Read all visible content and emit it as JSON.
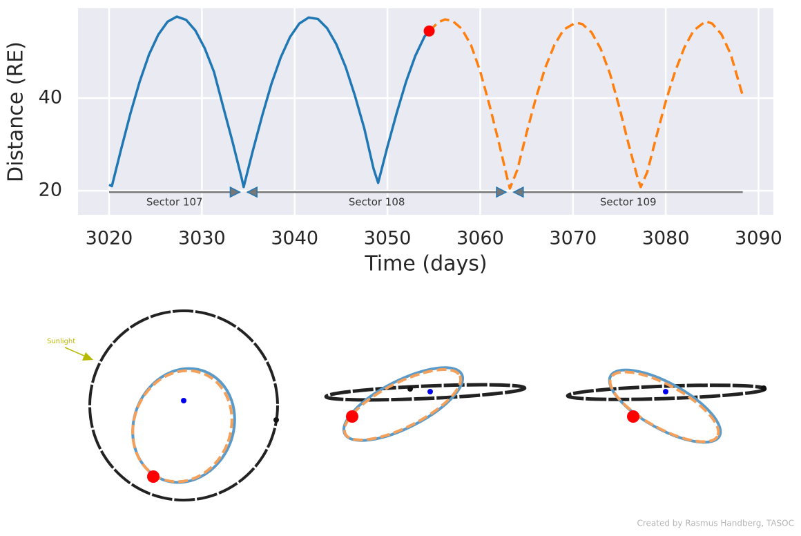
{
  "chart_data": {
    "type": "line",
    "ylabel": "Distance (RE)",
    "xlabel": "Time (days)",
    "xlim": [
      3016.65,
      3091.6
    ],
    "ylim": [
      14.8,
      59.4
    ],
    "xticks": [
      3020,
      3030,
      3040,
      3050,
      3060,
      3070,
      3080,
      3090
    ],
    "yticks": [
      20,
      40
    ],
    "grid": true,
    "series": [
      {
        "color": "#1f77b4",
        "dash": false,
        "x": [
          3020,
          3020.3,
          3021.3,
          3022.3,
          3023.3,
          3024.3,
          3025.3,
          3026.3,
          3027.3,
          3028.3,
          3029.3,
          3030.3,
          3031.3,
          3032.3,
          3033.3,
          3034.3,
          3034.5,
          3035.5,
          3036.5,
          3037.5,
          3038.5,
          3039.5,
          3040.5,
          3041.5,
          3042.5,
          3043.5,
          3044.5,
          3045.5,
          3046.5,
          3047.5,
          3048.5,
          3049,
          3050,
          3051,
          3052,
          3053,
          3054,
          3054.5
        ],
        "values": [
          21.3,
          21,
          29,
          36.7,
          43.6,
          49.4,
          53.7,
          56.5,
          57.6,
          56.9,
          54.6,
          50.8,
          45.7,
          38.1,
          30.6,
          22.6,
          20.8,
          28.7,
          36.2,
          43.1,
          48.8,
          53.2,
          56.1,
          57.4,
          57.1,
          55.1,
          51.6,
          46.7,
          40.5,
          33.5,
          24.8,
          21.7,
          29.5,
          36.8,
          43.5,
          49.1,
          53.3,
          54.5
        ]
      },
      {
        "color": "#ff7f0e",
        "dash": true,
        "x": [
          3054.5,
          3055.5,
          3056.2,
          3057,
          3058,
          3059,
          3060,
          3061,
          3062,
          3063,
          3063.2,
          3064,
          3065,
          3066,
          3067,
          3068,
          3069,
          3070.3,
          3071,
          3072,
          3073,
          3074,
          3075,
          3076,
          3077,
          3077.3,
          3078,
          3079,
          3080,
          3081,
          3082,
          3083,
          3084.3,
          3085,
          3086,
          3087,
          3088.3
        ],
        "values": [
          54.5,
          56.4,
          57,
          56.7,
          55,
          51.5,
          45.8,
          38.5,
          30.5,
          22,
          20.5,
          24.5,
          32.5,
          40,
          46.5,
          51.5,
          54.8,
          56.3,
          56,
          54.2,
          50.6,
          45.2,
          38,
          30,
          22.5,
          20.8,
          24,
          31.8,
          39.3,
          45.7,
          50.9,
          54.6,
          56.6,
          56.1,
          53.8,
          49.5,
          40.5
        ]
      }
    ],
    "marker": {
      "x": 3054.5,
      "y": 54.5,
      "color": "#ff0000"
    },
    "sector_y": 19.7,
    "sectors": [
      {
        "label": "Sector 107",
        "start": 3020,
        "end": 3034.1,
        "heads": [
          "end"
        ]
      },
      {
        "label": "Sector 108",
        "start": 3034.9,
        "end": 3062.8,
        "heads": [
          "start",
          "end"
        ]
      },
      {
        "label": "Sector 109",
        "start": 3063.6,
        "end": 3088.3,
        "heads": [
          "start"
        ]
      }
    ]
  },
  "sunlight_label": "Sunlight",
  "credit": "Created by Rasmus Handberg, TASOC"
}
